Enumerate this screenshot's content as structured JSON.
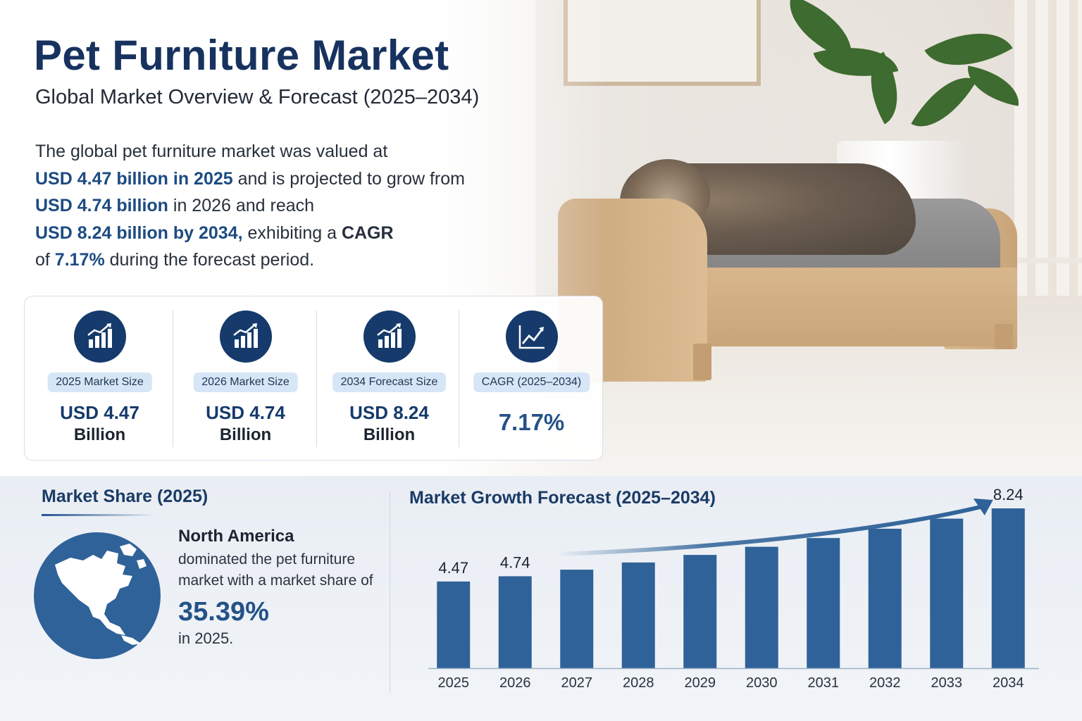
{
  "header": {
    "title": "Pet Furniture Market",
    "subtitle": "Global Market Overview & Forecast (2025–2034)"
  },
  "intro": {
    "p1": "The global pet furniture market was valued at",
    "h1": "USD 4.47 billion in 2025",
    "p2": " and is projected to grow from ",
    "h2": "USD 4.74 billion",
    "p3": " in 2026 and reach ",
    "h3": "USD 8.24 billion by 2034,",
    "p4": " exhibiting a ",
    "h4": "CAGR",
    "p5": " of ",
    "h5": "7.17%",
    "p6": " during the forecast period."
  },
  "kpis": [
    {
      "label": "2025 Market Size",
      "value": "USD 4.47",
      "unit": "Billion",
      "icon": "bar-growth-icon"
    },
    {
      "label": "2026 Market Size",
      "value": "USD 4.74",
      "unit": "Billion",
      "icon": "bar-growth-icon"
    },
    {
      "label": "2034 Forecast Size",
      "value": "USD 8.24",
      "unit": "Billion",
      "icon": "bar-growth-icon"
    },
    {
      "label": "CAGR (2025–2034)",
      "value": "7.17%",
      "unit": "",
      "icon": "line-growth-icon"
    }
  ],
  "market_share": {
    "title": "Market Share (2025)",
    "region": "North America",
    "text": "dominated the pet furniture market with a market share of",
    "value": "35.39%",
    "year": "in 2025.",
    "icon": "globe-north-america-icon"
  },
  "colors": {
    "navy": "#153a6b",
    "bar": "#2f6298",
    "accent": "#245288",
    "pill": "#d6e6f6"
  },
  "chart_data": {
    "type": "bar",
    "title": "Market Growth Forecast (2025–2034)",
    "categories": [
      "2025",
      "2026",
      "2027",
      "2028",
      "2029",
      "2030",
      "2031",
      "2032",
      "2033",
      "2034"
    ],
    "values": [
      4.47,
      4.74,
      5.08,
      5.45,
      5.84,
      6.26,
      6.71,
      7.19,
      7.71,
      8.24
    ],
    "data_labels": [
      "4.47",
      "4.74",
      "",
      "",
      "",
      "",
      "",
      "",
      "",
      "8.24"
    ],
    "ylim": [
      0,
      8.24
    ],
    "grid": false,
    "legend": "none",
    "annotation": "trend-arrow"
  }
}
